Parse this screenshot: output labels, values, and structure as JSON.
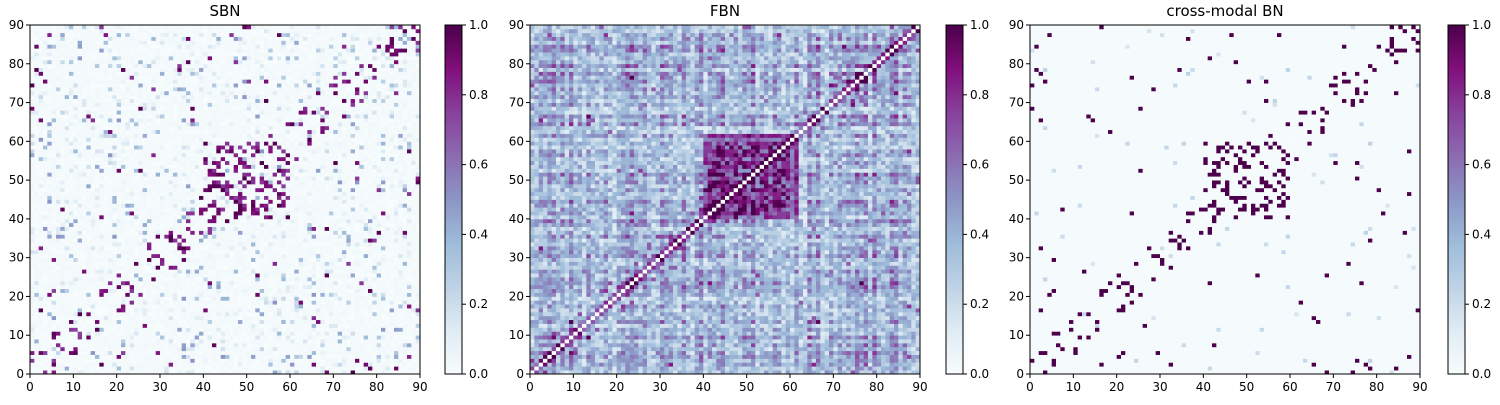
{
  "chart_data": [
    {
      "type": "heatmap",
      "title": "SBN",
      "xlabel": "",
      "ylabel": "",
      "xlim": [
        0,
        90
      ],
      "ylim": [
        0,
        90
      ],
      "xticks": [
        0,
        10,
        20,
        30,
        40,
        50,
        60,
        70,
        80,
        90
      ],
      "yticks": [
        0,
        10,
        20,
        30,
        40,
        50,
        60,
        70,
        80,
        90
      ],
      "colorbar": {
        "range": [
          0.0,
          1.0
        ],
        "ticks": [
          "0.0",
          "0.2",
          "0.4",
          "0.6",
          "0.8",
          "1.0"
        ]
      },
      "matrix_size": 90,
      "description_values": "sparse symmetric connectivity matrix, mostly near 0 with scattered strong (~1.0) links"
    },
    {
      "type": "heatmap",
      "title": "FBN",
      "xlabel": "",
      "ylabel": "",
      "xlim": [
        0,
        90
      ],
      "ylim": [
        0,
        90
      ],
      "xticks": [
        0,
        10,
        20,
        30,
        40,
        50,
        60,
        70,
        80,
        90
      ],
      "yticks": [
        0,
        10,
        20,
        30,
        40,
        50,
        60,
        70,
        80,
        90
      ],
      "colorbar": {
        "range": [
          0.0,
          1.0
        ],
        "ticks": [
          "0.0",
          "0.2",
          "0.4",
          "0.6",
          "0.8",
          "1.0"
        ]
      },
      "matrix_size": 90,
      "description_values": "dense symmetric connectivity matrix, mid-range values with strong diagonal block around 40-60"
    },
    {
      "type": "heatmap",
      "title": "cross-modal BN",
      "xlabel": "",
      "ylabel": "",
      "xlim": [
        0,
        90
      ],
      "ylim": [
        0,
        90
      ],
      "xticks": [
        0,
        10,
        20,
        30,
        40,
        50,
        60,
        70,
        80,
        90
      ],
      "yticks": [
        0,
        10,
        20,
        30,
        40,
        50,
        60,
        70,
        80,
        90
      ],
      "colorbar": {
        "range": [
          0.0,
          1.0
        ],
        "ticks": [
          "0.0",
          "0.2",
          "0.4",
          "0.6",
          "0.8",
          "1.0"
        ]
      },
      "matrix_size": 90,
      "description_values": "binary-like sparse symmetric matrix, values 0 or 1"
    }
  ],
  "colormap": [
    "#f7fcfd",
    "#e0ecf4",
    "#bfd3e6",
    "#9ebcda",
    "#8c96c6",
    "#8c6bb1",
    "#88419d",
    "#810f7c",
    "#4d004b"
  ]
}
